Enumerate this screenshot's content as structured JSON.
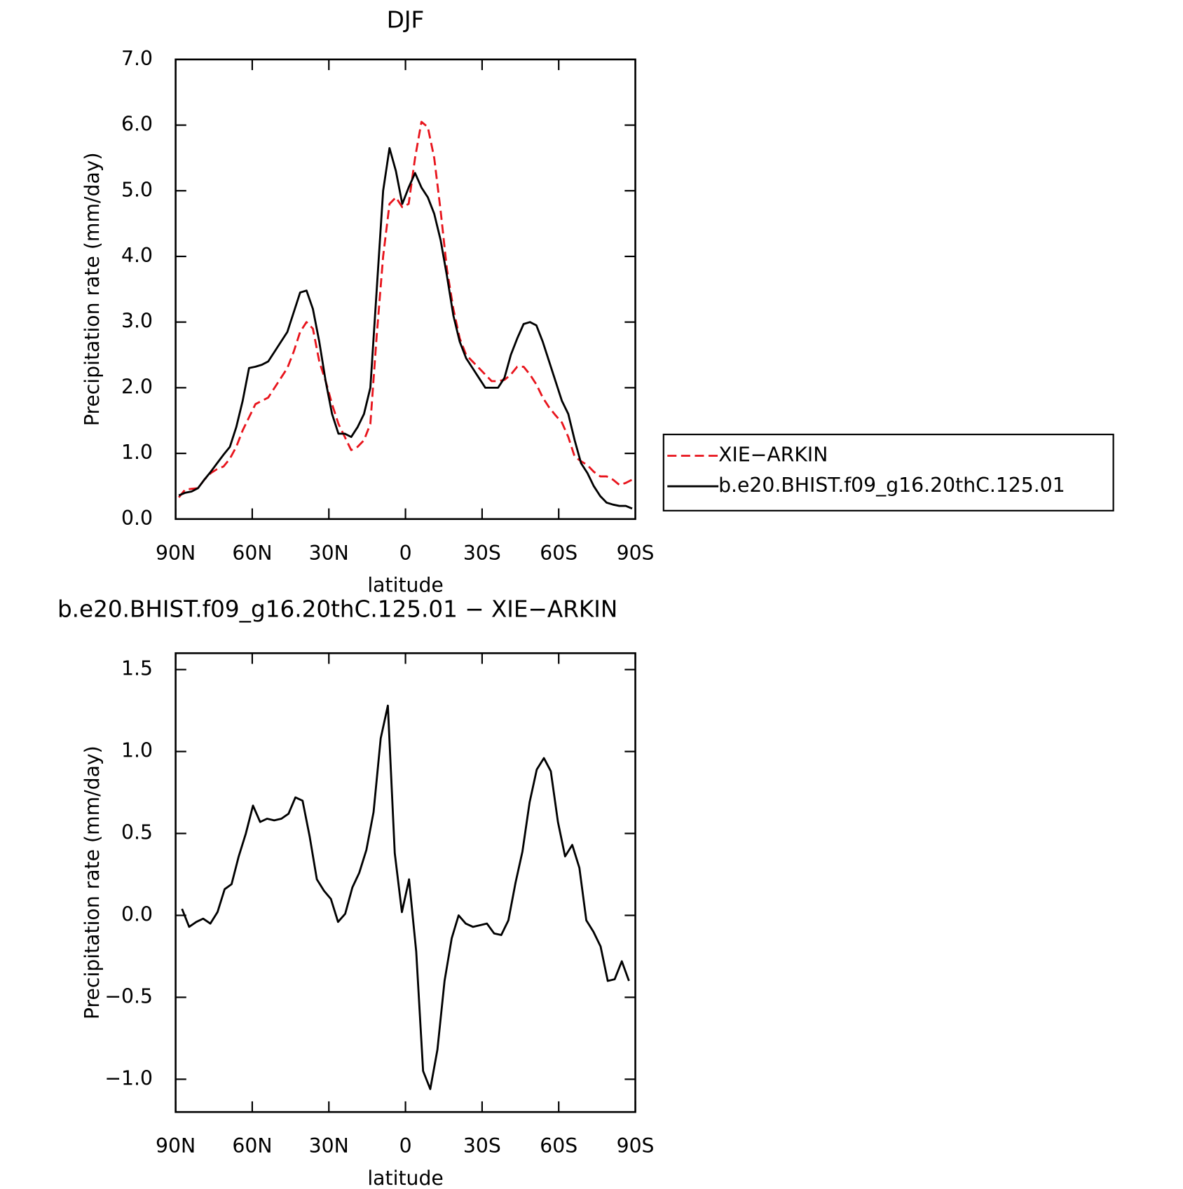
{
  "chart_data": [
    {
      "type": "line",
      "title": "DJF",
      "xlabel": "latitude",
      "ylabel": "Precipitation rate (mm/day)",
      "x": [
        88.75,
        86.25,
        83.75,
        81.25,
        78.75,
        76.25,
        73.75,
        71.25,
        68.75,
        66.25,
        63.75,
        61.25,
        58.75,
        56.25,
        53.75,
        51.25,
        48.75,
        46.25,
        43.75,
        41.25,
        38.75,
        36.25,
        33.75,
        31.25,
        28.75,
        26.25,
        23.75,
        21.25,
        18.75,
        16.25,
        13.75,
        11.25,
        8.75,
        6.25,
        3.75,
        1.25,
        -1.25,
        -3.75,
        -6.25,
        -8.75,
        -11.25,
        -13.75,
        -16.25,
        -18.75,
        -21.25,
        -23.75,
        -26.25,
        -28.75,
        -31.25,
        -33.75,
        -36.25,
        -38.75,
        -41.25,
        -43.75,
        -46.25,
        -48.75,
        -51.25,
        -53.75,
        -56.25,
        -58.75,
        -61.25,
        -63.75,
        -66.25,
        -68.75,
        -71.25,
        -73.75,
        -76.25,
        -78.75,
        -81.25,
        -83.75,
        -86.25,
        -88.75
      ],
      "series": [
        {
          "name": "XIE−ARKIN",
          "color": "#e8141c",
          "dashed": true,
          "values": [
            0.33,
            0.45,
            0.46,
            0.47,
            0.6,
            0.7,
            0.76,
            0.8,
            0.92,
            1.1,
            1.35,
            1.55,
            1.75,
            1.8,
            1.85,
            2.0,
            2.15,
            2.3,
            2.55,
            2.85,
            3.0,
            2.9,
            2.4,
            2.1,
            1.75,
            1.45,
            1.25,
            1.05,
            1.1,
            1.2,
            1.45,
            2.8,
            4.0,
            4.8,
            4.9,
            4.75,
            4.8,
            5.5,
            6.05,
            5.97,
            5.5,
            4.7,
            3.8,
            3.2,
            2.75,
            2.5,
            2.4,
            2.3,
            2.2,
            2.1,
            2.1,
            2.12,
            2.2,
            2.32,
            2.32,
            2.2,
            2.05,
            1.85,
            1.7,
            1.58,
            1.47,
            1.25,
            0.95,
            0.88,
            0.82,
            0.72,
            0.65,
            0.65,
            0.6,
            0.52,
            0.55,
            0.6
          ]
        },
        {
          "name": "b.e20.BHIST.f09_g16.20thC.125.01",
          "color": "#000000",
          "dashed": false,
          "values": [
            0.36,
            0.4,
            0.42,
            0.47,
            0.6,
            0.72,
            0.85,
            0.98,
            1.1,
            1.4,
            1.8,
            2.3,
            2.32,
            2.35,
            2.4,
            2.55,
            2.7,
            2.85,
            3.15,
            3.45,
            3.48,
            3.2,
            2.7,
            2.1,
            1.6,
            1.3,
            1.3,
            1.25,
            1.4,
            1.6,
            2.0,
            3.5,
            5.0,
            5.65,
            5.3,
            4.8,
            5.05,
            5.27,
            5.05,
            4.9,
            4.65,
            4.25,
            3.7,
            3.1,
            2.7,
            2.45,
            2.3,
            2.15,
            2.0,
            2.0,
            2.0,
            2.15,
            2.5,
            2.75,
            2.97,
            3.0,
            2.95,
            2.7,
            2.4,
            2.1,
            1.8,
            1.6,
            1.2,
            0.85,
            0.7,
            0.5,
            0.35,
            0.25,
            0.22,
            0.2,
            0.2,
            0.16
          ]
        }
      ],
      "xlim": [
        90,
        -90
      ],
      "xticks": [
        {
          "value": 90,
          "label": "90N"
        },
        {
          "value": 60,
          "label": "60N"
        },
        {
          "value": 30,
          "label": "30N"
        },
        0,
        {
          "value": -30,
          "label": "30S"
        },
        {
          "value": -60,
          "label": "60S"
        },
        {
          "value": -90,
          "label": "90S"
        }
      ],
      "ylim": [
        0,
        7
      ],
      "yticks": [
        {
          "value": 0,
          "label": "0.0"
        },
        {
          "value": 1,
          "label": "1.0"
        },
        {
          "value": 2,
          "label": "2.0"
        },
        {
          "value": 3,
          "label": "3.0"
        },
        {
          "value": 4,
          "label": "4.0"
        },
        {
          "value": 5,
          "label": "5.0"
        },
        {
          "value": 6,
          "label": "6.0"
        },
        {
          "value": 7,
          "label": "7.0"
        }
      ],
      "legend": "right"
    },
    {
      "type": "line",
      "title": "b.e20.BHIST.f09_g16.20thC.125.01 − XIE−ARKIN",
      "xlabel": "latitude",
      "ylabel": "Precipitation rate (mm/day)",
      "x": [
        87.5,
        84.7,
        81.9,
        79.2,
        76.4,
        73.6,
        70.8,
        68.1,
        65.3,
        62.5,
        59.7,
        56.9,
        54.2,
        51.4,
        48.6,
        45.8,
        43.1,
        40.3,
        37.5,
        34.7,
        31.9,
        29.2,
        26.4,
        23.6,
        20.8,
        18.1,
        15.3,
        12.5,
        9.7,
        6.9,
        4.2,
        1.4,
        -1.4,
        -4.2,
        -6.9,
        -9.7,
        -12.5,
        -15.3,
        -18.1,
        -20.8,
        -23.6,
        -26.4,
        -29.2,
        -31.9,
        -34.7,
        -37.5,
        -40.3,
        -43.1,
        -45.8,
        -48.6,
        -51.4,
        -54.2,
        -56.9,
        -59.7,
        -62.5,
        -65.3,
        -68.1,
        -70.8,
        -73.6,
        -76.4,
        -79.2,
        -81.9,
        -84.7,
        -87.5
      ],
      "series": [
        {
          "color": "#000000",
          "dashed": false,
          "values": [
            0.04,
            -0.07,
            -0.04,
            -0.02,
            -0.05,
            0.02,
            0.16,
            0.19,
            0.36,
            0.5,
            0.67,
            0.57,
            0.59,
            0.58,
            0.59,
            0.62,
            0.72,
            0.7,
            0.48,
            0.22,
            0.15,
            0.1,
            -0.04,
            0.01,
            0.17,
            0.26,
            0.4,
            0.63,
            1.08,
            1.28,
            0.38,
            0.02,
            0.22,
            -0.22,
            -0.95,
            -1.06,
            -0.82,
            -0.4,
            -0.14,
            0.0,
            -0.05,
            -0.07,
            -0.06,
            -0.05,
            -0.11,
            -0.12,
            -0.03,
            0.2,
            0.39,
            0.69,
            0.89,
            0.96,
            0.88,
            0.57,
            0.36,
            0.43,
            0.29,
            -0.03,
            -0.1,
            -0.19,
            -0.4,
            -0.39,
            -0.28,
            -0.4
          ]
        }
      ],
      "xlim": [
        90,
        -90
      ],
      "xticks": [
        {
          "value": 90,
          "label": "90N"
        },
        {
          "value": 60,
          "label": "60N"
        },
        {
          "value": 30,
          "label": "30N"
        },
        0,
        {
          "value": -30,
          "label": "30S"
        },
        {
          "value": -60,
          "label": "60S"
        },
        {
          "value": -90,
          "label": "90S"
        }
      ],
      "ylim": [
        -1.2,
        1.6
      ],
      "yticks": [
        {
          "value": -1,
          "label": "−1.0"
        },
        {
          "value": -0.5,
          "label": "−0.5"
        },
        {
          "value": 0,
          "label": "0.0"
        },
        {
          "value": 0.5,
          "label": "0.5"
        },
        {
          "value": 1,
          "label": "1.0"
        },
        {
          "value": 1.5,
          "label": "1.5"
        }
      ]
    }
  ]
}
